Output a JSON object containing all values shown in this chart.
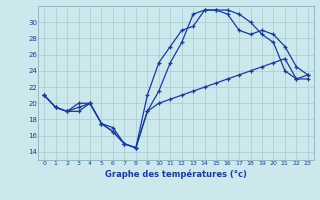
{
  "xlabel": "Graphe des températures (°c)",
  "bg_color": "#cce8ec",
  "line_color": "#1a3a9c",
  "ylim": [
    13,
    32
  ],
  "xlim": [
    -0.5,
    23.5
  ],
  "yticks": [
    14,
    16,
    18,
    20,
    22,
    24,
    26,
    28,
    30
  ],
  "xticks": [
    0,
    1,
    2,
    3,
    4,
    5,
    6,
    7,
    8,
    9,
    10,
    11,
    12,
    13,
    14,
    15,
    16,
    17,
    18,
    19,
    20,
    21,
    22,
    23
  ],
  "curve1_x": [
    0,
    1,
    2,
    3,
    4,
    5,
    6,
    7,
    8,
    9,
    10,
    11,
    12,
    13,
    14,
    15,
    16,
    17,
    18,
    19,
    20,
    21,
    22,
    23
  ],
  "curve1_y": [
    21.0,
    19.5,
    19.0,
    19.5,
    20.0,
    17.5,
    16.5,
    15.0,
    14.5,
    21.0,
    25.0,
    27.0,
    29.0,
    29.5,
    31.5,
    31.5,
    31.5,
    31.0,
    30.0,
    28.5,
    27.5,
    24.0,
    23.0,
    23.0
  ],
  "curve2_x": [
    0,
    1,
    2,
    3,
    4,
    5,
    6,
    7,
    8,
    9,
    10,
    11,
    12,
    13,
    14,
    15,
    16,
    17,
    18,
    19,
    20,
    21,
    22,
    23
  ],
  "curve2_y": [
    21.0,
    19.5,
    19.0,
    20.0,
    20.0,
    17.5,
    17.0,
    15.0,
    14.5,
    19.0,
    21.5,
    25.0,
    27.5,
    31.0,
    31.5,
    31.5,
    31.0,
    29.0,
    28.5,
    29.0,
    28.5,
    27.0,
    24.5,
    23.5
  ],
  "curve3_x": [
    0,
    1,
    2,
    3,
    4,
    5,
    6,
    7,
    8,
    9,
    10,
    11,
    12,
    13,
    14,
    15,
    16,
    17,
    18,
    19,
    20,
    21,
    22,
    23
  ],
  "curve3_y": [
    21.0,
    19.5,
    19.0,
    19.0,
    20.0,
    17.5,
    16.5,
    15.0,
    14.5,
    19.0,
    20.0,
    20.5,
    21.0,
    21.5,
    22.0,
    22.5,
    23.0,
    23.5,
    24.0,
    24.5,
    25.0,
    25.5,
    23.0,
    23.5
  ]
}
